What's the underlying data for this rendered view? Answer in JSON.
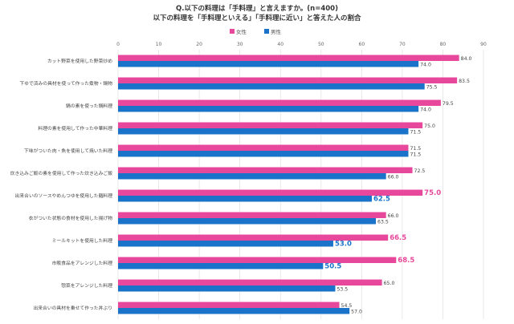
{
  "header": {
    "line1": "Q.以下の料理は「手料理」と言えますか。(n=400)",
    "line2": "以下の料理を「手料理といえる」「手料理に近い」と答えた人の割合"
  },
  "chart_data": {
    "type": "bar",
    "orientation": "horizontal",
    "xlim": [
      0,
      90
    ],
    "xticks": [
      0,
      10,
      20,
      30,
      40,
      50,
      60,
      70,
      80,
      90
    ],
    "grid": true,
    "legend_position": "top-center",
    "categories": [
      "カット野菜を使用した野菜炒め",
      "下ゆで済みの具材を使って作った煮物・鍋物",
      "鍋の素を使った鍋料理",
      "料理の素を使用して作った中華料理",
      "下味がついた肉・魚を使用して焼いた料理",
      "炊き込みご飯の素を使用して作った炊き込みご飯",
      "出来合いのソースやめんつゆを使用した麺料理",
      "衣がついた状態の食材を使用した揚げ物",
      "ミールキットを使用した料理",
      "市販食品をアレンジした料理",
      "惣菜をアレンジした料理",
      "出来合いの具材を乗せて作った丼ぶり"
    ],
    "series": [
      {
        "name": "女性",
        "color": "#e8489b",
        "values": [
          84.0,
          83.5,
          79.5,
          75.0,
          71.5,
          72.5,
          75.0,
          66.0,
          66.5,
          68.5,
          65.0,
          54.5
        ]
      },
      {
        "name": "男性",
        "color": "#1a73c8",
        "values": [
          74.0,
          75.5,
          74.0,
          71.5,
          71.5,
          66.0,
          62.5,
          63.5,
          53.0,
          50.5,
          53.5,
          57.0
        ]
      }
    ],
    "highlighted": {
      "female": [
        6,
        8,
        9
      ],
      "male": [
        6,
        8,
        9
      ]
    }
  }
}
